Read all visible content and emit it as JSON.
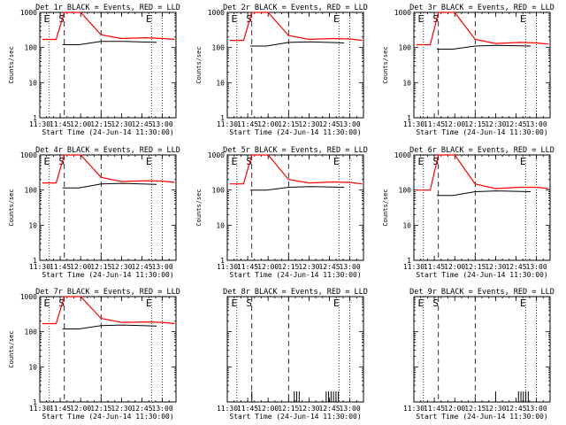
{
  "figure": {
    "layout": "3x3 grid of detector rate plots"
  },
  "chart_data": [
    {
      "type": "line",
      "panel": "det-1r",
      "title": "Det 1r BLACK = Events, RED = LLD",
      "xlabel": "Start Time (24-Jun-14 11:30:00)",
      "ylabel": "Counts/sec",
      "yscale": "log",
      "ylim": [
        1,
        1000
      ],
      "xlim": [
        "11:30",
        "13:10"
      ],
      "x_ticks": [
        "11:30",
        "11:45",
        "12:00",
        "12:15",
        "12:30",
        "12:45",
        "13:00"
      ],
      "y_ticks": [
        "1",
        "10",
        "100",
        "1000"
      ],
      "markers": [
        {
          "label": "E",
          "time": "11:37"
        },
        {
          "label": "S",
          "time": "11:48"
        },
        {
          "label": "E",
          "time": "12:52"
        }
      ],
      "series": [
        {
          "name": "BLACK = Events",
          "color": "#000000",
          "x": [
            11.78,
            11.98,
            12.25,
            12.52,
            12.93
          ],
          "y": [
            120,
            120,
            150,
            150,
            140
          ]
        },
        {
          "name": "RED = LLD",
          "color": "#ff0000",
          "x": [
            11.53,
            11.7,
            11.8,
            12.0,
            12.25,
            12.5,
            12.8,
            13.0,
            13.15
          ],
          "y": [
            170,
            170,
            1000,
            1000,
            230,
            180,
            190,
            180,
            170
          ]
        }
      ]
    },
    {
      "type": "line",
      "panel": "det-2r",
      "title": "Det 2r BLACK = Events, RED = LLD",
      "xlabel": "Start Time (24-Jun-14 11:30:00)",
      "ylabel": "Counts/sec",
      "yscale": "log",
      "ylim": [
        1,
        1000
      ],
      "xlim": [
        "11:30",
        "13:10"
      ],
      "x_ticks": [
        "11:30",
        "11:45",
        "12:00",
        "12:15",
        "12:30",
        "12:45",
        "13:00"
      ],
      "y_ticks": [
        "1",
        "10",
        "100",
        "1000"
      ],
      "markers": [
        {
          "label": "E",
          "time": "11:37"
        },
        {
          "label": "S",
          "time": "11:48"
        },
        {
          "label": "E",
          "time": "12:52"
        }
      ],
      "series": [
        {
          "name": "BLACK = Events",
          "color": "#000000",
          "x": [
            11.78,
            11.98,
            12.25,
            12.52,
            12.93
          ],
          "y": [
            110,
            110,
            140,
            145,
            135
          ]
        },
        {
          "name": "RED = LLD",
          "color": "#ff0000",
          "x": [
            11.53,
            11.7,
            11.8,
            12.0,
            12.25,
            12.5,
            12.8,
            13.0,
            13.15
          ],
          "y": [
            160,
            160,
            1000,
            1000,
            220,
            170,
            180,
            175,
            160
          ]
        }
      ]
    },
    {
      "type": "line",
      "panel": "det-3r",
      "title": "Det 3r BLACK = Events, RED = LLD",
      "xlabel": "Start Time (24-Jun-14 11:30:00)",
      "ylabel": "Counts/sec",
      "yscale": "log",
      "ylim": [
        1,
        1000
      ],
      "xlim": [
        "11:30",
        "13:10"
      ],
      "x_ticks": [
        "11:30",
        "11:45",
        "12:00",
        "12:15",
        "12:30",
        "12:45",
        "13:00"
      ],
      "y_ticks": [
        "1",
        "10",
        "100",
        "1000"
      ],
      "markers": [
        {
          "label": "E",
          "time": "11:37"
        },
        {
          "label": "S",
          "time": "11:48"
        },
        {
          "label": "E",
          "time": "12:52"
        }
      ],
      "series": [
        {
          "name": "BLACK = Events",
          "color": "#000000",
          "x": [
            11.78,
            11.98,
            12.25,
            12.52,
            12.93
          ],
          "y": [
            90,
            90,
            110,
            115,
            110
          ]
        },
        {
          "name": "RED = LLD",
          "color": "#ff0000",
          "x": [
            11.53,
            11.7,
            11.8,
            12.0,
            12.25,
            12.5,
            12.8,
            13.0,
            13.15
          ],
          "y": [
            120,
            120,
            1000,
            1000,
            170,
            130,
            140,
            135,
            125
          ]
        }
      ]
    },
    {
      "type": "line",
      "panel": "det-4r",
      "title": "Det 4r BLACK = Events, RED = LLD",
      "xlabel": "Start Time (24-Jun-14 11:30:00)",
      "ylabel": "Counts/sec",
      "yscale": "log",
      "ylim": [
        1,
        1000
      ],
      "xlim": [
        "11:30",
        "13:10"
      ],
      "x_ticks": [
        "11:30",
        "11:45",
        "12:00",
        "12:15",
        "12:30",
        "12:45",
        "13:00"
      ],
      "y_ticks": [
        "1",
        "10",
        "100",
        "1000"
      ],
      "markers": [
        {
          "label": "E",
          "time": "11:37"
        },
        {
          "label": "S",
          "time": "11:48"
        },
        {
          "label": "E",
          "time": "12:52"
        }
      ],
      "series": [
        {
          "name": "BLACK = Events",
          "color": "#000000",
          "x": [
            11.78,
            11.98,
            12.25,
            12.52,
            12.93
          ],
          "y": [
            115,
            115,
            150,
            155,
            145
          ]
        },
        {
          "name": "RED = LLD",
          "color": "#ff0000",
          "x": [
            11.53,
            11.7,
            11.8,
            12.0,
            12.25,
            12.5,
            12.8,
            13.0,
            13.15
          ],
          "y": [
            160,
            160,
            1000,
            1000,
            230,
            175,
            185,
            180,
            165
          ]
        }
      ]
    },
    {
      "type": "line",
      "panel": "det-5r",
      "title": "Det 5r BLACK = Events, RED = LLD",
      "xlabel": "Start Time (24-Jun-14 11:30:00)",
      "ylabel": "Counts/sec",
      "yscale": "log",
      "ylim": [
        1,
        1000
      ],
      "xlim": [
        "11:30",
        "13:10"
      ],
      "x_ticks": [
        "11:30",
        "11:45",
        "12:00",
        "12:15",
        "12:30",
        "12:45",
        "13:00"
      ],
      "y_ticks": [
        "1",
        "10",
        "100",
        "1000"
      ],
      "markers": [
        {
          "label": "E",
          "time": "11:37"
        },
        {
          "label": "S",
          "time": "11:48"
        },
        {
          "label": "E",
          "time": "12:52"
        }
      ],
      "series": [
        {
          "name": "BLACK = Events",
          "color": "#000000",
          "x": [
            11.78,
            11.98,
            12.25,
            12.52,
            12.93
          ],
          "y": [
            100,
            100,
            120,
            125,
            120
          ]
        },
        {
          "name": "RED = LLD",
          "color": "#ff0000",
          "x": [
            11.53,
            11.7,
            11.8,
            12.0,
            12.25,
            12.5,
            12.8,
            13.0,
            13.15
          ],
          "y": [
            150,
            150,
            1000,
            1000,
            200,
            160,
            170,
            165,
            150
          ]
        }
      ]
    },
    {
      "type": "line",
      "panel": "det-6r",
      "title": "Det 6r BLACK = Events, RED = LLD",
      "xlabel": "Start Time (24-Jun-14 11:30:00)",
      "ylabel": "Counts/sec",
      "yscale": "log",
      "ylim": [
        1,
        1000
      ],
      "xlim": [
        "11:30",
        "13:10"
      ],
      "x_ticks": [
        "11:30",
        "11:45",
        "12:00",
        "12:15",
        "12:30",
        "12:45",
        "13:00"
      ],
      "y_ticks": [
        "1",
        "10",
        "100",
        "1000"
      ],
      "markers": [
        {
          "label": "E",
          "time": "11:37"
        },
        {
          "label": "S",
          "time": "11:48"
        },
        {
          "label": "E",
          "time": "12:52"
        }
      ],
      "series": [
        {
          "name": "BLACK = Events",
          "color": "#000000",
          "x": [
            11.78,
            11.98,
            12.25,
            12.52,
            12.93
          ],
          "y": [
            70,
            70,
            90,
            95,
            90
          ]
        },
        {
          "name": "RED = LLD",
          "color": "#ff0000",
          "x": [
            11.53,
            11.7,
            11.8,
            12.0,
            12.25,
            12.5,
            12.8,
            13.0,
            13.15
          ],
          "y": [
            100,
            100,
            1000,
            1000,
            150,
            110,
            120,
            120,
            110
          ]
        }
      ]
    },
    {
      "type": "line",
      "panel": "det-7r",
      "title": "Det 7r BLACK = Events, RED = LLD",
      "xlabel": "Start Time (24-Jun-14 11:30:00)",
      "ylabel": "Counts/sec",
      "yscale": "log",
      "ylim": [
        1,
        1000
      ],
      "xlim": [
        "11:30",
        "13:10"
      ],
      "x_ticks": [
        "11:30",
        "11:45",
        "12:00",
        "12:15",
        "12:30",
        "12:45",
        "13:00"
      ],
      "y_ticks": [
        "1",
        "10",
        "100",
        "1000"
      ],
      "markers": [
        {
          "label": "E",
          "time": "11:37"
        },
        {
          "label": "S",
          "time": "11:48"
        },
        {
          "label": "E",
          "time": "12:52"
        }
      ],
      "series": [
        {
          "name": "BLACK = Events",
          "color": "#000000",
          "x": [
            11.78,
            11.98,
            12.25,
            12.52,
            12.93
          ],
          "y": [
            120,
            120,
            150,
            155,
            145
          ]
        },
        {
          "name": "RED = LLD",
          "color": "#ff0000",
          "x": [
            11.53,
            11.7,
            11.8,
            12.0,
            12.25,
            12.5,
            12.8,
            13.0,
            13.15
          ],
          "y": [
            170,
            170,
            1000,
            1000,
            240,
            185,
            190,
            185,
            170
          ]
        }
      ]
    },
    {
      "type": "line",
      "panel": "det-8r",
      "title": "Det 8r BLACK = Events, RED = LLD",
      "xlabel": "Start Time (24-Jun-14 11:30:00)",
      "ylabel": "",
      "yscale": "log",
      "ylim": [
        1,
        1000
      ],
      "xlim": [
        "11:30",
        "13:10"
      ],
      "x_ticks": [
        "11:30",
        "11:45",
        "12:00",
        "12:15",
        "12:30",
        "12:45",
        "13:00"
      ],
      "y_ticks": [],
      "markers": [
        {
          "label": "E",
          "time": "11:37"
        },
        {
          "label": "S",
          "time": "11:48"
        },
        {
          "label": "E",
          "time": "12:52"
        }
      ],
      "series": [
        {
          "name": "BLACK = Events",
          "color": "#000000",
          "x": [
            11.8,
            12.32,
            12.35,
            12.38,
            12.71,
            12.74,
            12.77,
            12.8,
            12.83,
            12.86
          ],
          "y": [
            2,
            2,
            2,
            2,
            2,
            2,
            2,
            2,
            2,
            2
          ]
        },
        {
          "name": "RED = LLD",
          "color": "#ff0000",
          "x": [],
          "y": []
        }
      ]
    },
    {
      "type": "line",
      "panel": "det-9r",
      "title": "Det 9r BLACK = Events, RED = LLD",
      "xlabel": "Start Time (24-Jun-14 11:30:00)",
      "ylabel": "",
      "yscale": "log",
      "ylim": [
        1,
        1000
      ],
      "xlim": [
        "11:30",
        "13:10"
      ],
      "x_ticks": [
        "11:30",
        "11:45",
        "12:00",
        "12:15",
        "12:30",
        "12:45",
        "13:00"
      ],
      "y_ticks": [],
      "markers": [
        {
          "label": "E",
          "time": "11:37"
        },
        {
          "label": "S",
          "time": "11:48"
        },
        {
          "label": "E",
          "time": "12:52"
        }
      ],
      "series": [
        {
          "name": "BLACK = Events",
          "color": "#000000",
          "x": [
            12.5,
            12.78,
            12.81,
            12.84,
            12.87,
            12.9
          ],
          "y": [
            2,
            2,
            2,
            2,
            2,
            2
          ]
        },
        {
          "name": "RED = LLD",
          "color": "#ff0000",
          "x": [],
          "y": []
        }
      ]
    }
  ]
}
